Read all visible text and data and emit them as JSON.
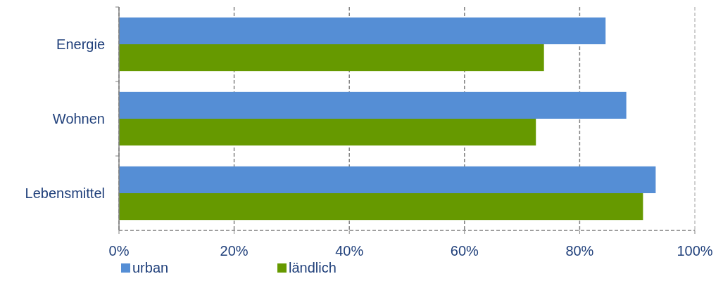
{
  "chart_data": {
    "type": "bar",
    "orientation": "horizontal",
    "categories": [
      "Energie",
      "Wohnen",
      "Lebensmittel"
    ],
    "series": [
      {
        "name": "urban",
        "color": "#558ed5",
        "values": [
          84.5,
          88.1,
          93.2
        ]
      },
      {
        "name": "ländlich",
        "color": "#669900",
        "values": [
          73.8,
          72.4,
          91.0
        ]
      }
    ],
    "xlim": [
      0,
      100
    ],
    "xticks": [
      {
        "value": 0,
        "label": "0%"
      },
      {
        "value": 20,
        "label": "20%"
      },
      {
        "value": 40,
        "label": "40%"
      },
      {
        "value": 60,
        "label": "60%"
      },
      {
        "value": 80,
        "label": "80%"
      },
      {
        "value": 100,
        "label": "100%"
      }
    ],
    "grid": "x",
    "legend": "bottom"
  }
}
